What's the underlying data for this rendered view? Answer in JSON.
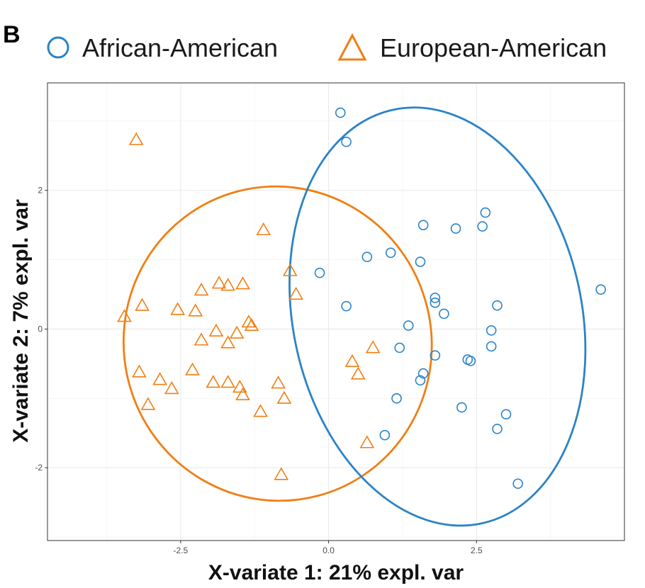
{
  "panel_label": "B",
  "chart_data": {
    "type": "scatter",
    "xlabel": "X-variate 1: 21% expl. var",
    "ylabel": "X-variate 2: 7% expl. var",
    "xlim": [
      -4.75,
      5.0
    ],
    "ylim": [
      -3.05,
      3.55
    ],
    "x_ticks": [
      -2.5,
      0.0,
      2.5
    ],
    "x_tick_labels": [
      "-2.5",
      "0.0",
      "2.5"
    ],
    "y_ticks": [
      -2,
      0,
      2
    ],
    "y_tick_labels": [
      "-2",
      "0",
      "2"
    ],
    "grid": true,
    "legend_position": "top",
    "series": [
      {
        "name": "African-American",
        "marker": "circle",
        "color": "#2b83c6",
        "points": [
          [
            0.2,
            3.12
          ],
          [
            0.3,
            2.7
          ],
          [
            1.6,
            1.5
          ],
          [
            2.15,
            1.45
          ],
          [
            2.65,
            1.68
          ],
          [
            2.6,
            1.48
          ],
          [
            0.65,
            1.04
          ],
          [
            1.05,
            1.1
          ],
          [
            1.55,
            0.97
          ],
          [
            -0.15,
            0.81
          ],
          [
            4.6,
            0.57
          ],
          [
            1.8,
            0.45
          ],
          [
            1.8,
            0.38
          ],
          [
            2.85,
            0.34
          ],
          [
            1.95,
            0.22
          ],
          [
            0.3,
            0.33
          ],
          [
            1.35,
            0.05
          ],
          [
            2.75,
            -0.02
          ],
          [
            1.2,
            -0.27
          ],
          [
            2.75,
            -0.25
          ],
          [
            1.8,
            -0.38
          ],
          [
            2.35,
            -0.44
          ],
          [
            2.4,
            -0.46
          ],
          [
            1.6,
            -0.64
          ],
          [
            1.55,
            -0.74
          ],
          [
            1.15,
            -1.0
          ],
          [
            2.25,
            -1.13
          ],
          [
            3.0,
            -1.23
          ],
          [
            2.85,
            -1.44
          ],
          [
            0.95,
            -1.53
          ],
          [
            3.2,
            -2.23
          ]
        ]
      },
      {
        "name": "European-American",
        "marker": "triangle",
        "color": "#f07f14",
        "points": [
          [
            -3.25,
            2.73
          ],
          [
            -1.1,
            1.43
          ],
          [
            -0.65,
            0.84
          ],
          [
            -0.55,
            0.5
          ],
          [
            -2.15,
            0.56
          ],
          [
            -1.85,
            0.66
          ],
          [
            -1.7,
            0.63
          ],
          [
            -1.45,
            0.65
          ],
          [
            -3.15,
            0.34
          ],
          [
            -3.45,
            0.18
          ],
          [
            -2.55,
            0.28
          ],
          [
            -2.25,
            0.26
          ],
          [
            -1.35,
            0.1
          ],
          [
            -1.3,
            0.05
          ],
          [
            -1.55,
            -0.06
          ],
          [
            -1.9,
            -0.03
          ],
          [
            -2.15,
            -0.16
          ],
          [
            -1.7,
            -0.2
          ],
          [
            0.75,
            -0.27
          ],
          [
            -3.2,
            -0.62
          ],
          [
            -2.85,
            -0.73
          ],
          [
            -2.65,
            -0.86
          ],
          [
            -2.3,
            -0.59
          ],
          [
            -1.95,
            -0.77
          ],
          [
            -1.7,
            -0.77
          ],
          [
            0.4,
            -0.47
          ],
          [
            0.5,
            -0.65
          ],
          [
            -1.5,
            -0.84
          ],
          [
            -1.45,
            -0.95
          ],
          [
            -0.85,
            -0.78
          ],
          [
            -0.75,
            -1.0
          ],
          [
            -3.05,
            -1.09
          ],
          [
            -1.15,
            -1.19
          ],
          [
            -0.8,
            -2.1
          ],
          [
            0.65,
            -1.64
          ]
        ]
      }
    ],
    "ellipses": [
      {
        "series": "European-American",
        "cx": -0.86,
        "cy": -0.21,
        "rx": 2.6,
        "ry": 2.27,
        "rotation_deg": 15,
        "color": "#f07f14"
      },
      {
        "series": "African-American",
        "cx": 1.84,
        "cy": 0.18,
        "rx": 2.44,
        "ry": 3.05,
        "rotation_deg": 12,
        "color": "#2b83c6"
      }
    ]
  }
}
